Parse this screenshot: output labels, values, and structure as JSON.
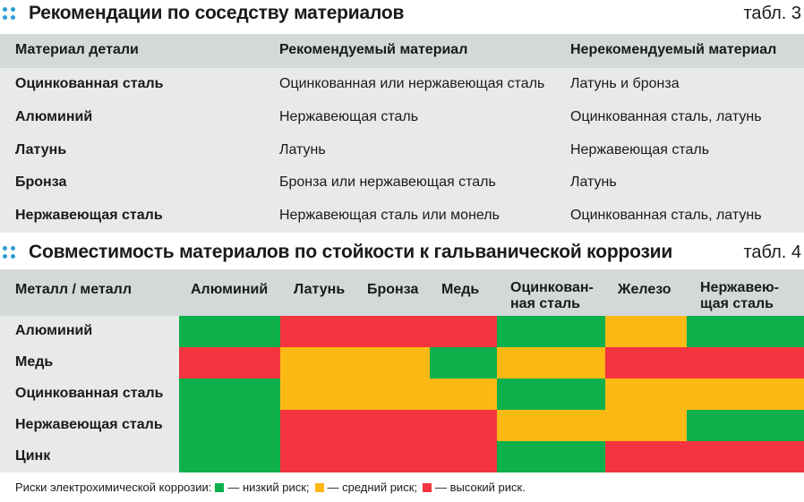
{
  "table3": {
    "title": "Рекомендации по соседству материалов",
    "number": "табл. 3",
    "headers": [
      "Материал детали",
      "Рекомендуемый материал",
      "Нерекомендуемый материал"
    ],
    "rows": [
      [
        "Оцинкованная сталь",
        "Оцинкованная или нержавеющая сталь",
        "Латунь и бронза"
      ],
      [
        "Алюминий",
        "Нержавеющая сталь",
        "Оцинкованная сталь, латунь"
      ],
      [
        "Латунь",
        "Латунь",
        "Нержавеющая сталь"
      ],
      [
        "Бронза",
        "Бронза или нержавеющая сталь",
        "Латунь"
      ],
      [
        "Нержавеющая сталь",
        "Нержавеющая сталь или монель",
        "Оцинкованная сталь, латунь"
      ]
    ]
  },
  "table4": {
    "title": "Совместимость материалов по стойкости к гальванической коррозии",
    "number": "табл. 4",
    "corner_header": "Металл / металл",
    "columns": [
      [
        "Алюминий"
      ],
      [
        "Латунь"
      ],
      [
        "Бронза"
      ],
      [
        "Медь"
      ],
      [
        "Оцинкован-",
        "ная сталь"
      ],
      [
        "Железо"
      ],
      [
        "Нержавею-",
        "щая сталь"
      ]
    ],
    "rows": [
      {
        "label": "Алюминий",
        "risk": [
          "low",
          "high",
          "high",
          "high",
          "low",
          "medium",
          "low"
        ]
      },
      {
        "label": "Медь",
        "risk": [
          "high",
          "medium",
          "medium",
          "low",
          "medium",
          "high",
          "high"
        ]
      },
      {
        "label": "Оцинкованная сталь",
        "risk": [
          "low",
          "medium",
          "medium",
          "medium",
          "low",
          "medium",
          "medium"
        ]
      },
      {
        "label": "Нержавеющая сталь",
        "risk": [
          "low",
          "high",
          "high",
          "high",
          "medium",
          "medium",
          "low"
        ]
      },
      {
        "label": "Цинк",
        "risk": [
          "low",
          "high",
          "high",
          "high",
          "low",
          "high",
          "high"
        ]
      }
    ]
  },
  "legend": {
    "prefix": "Риски электрохимической коррозии:",
    "items": [
      {
        "key": "low",
        "label": "— низкий риск;"
      },
      {
        "key": "medium",
        "label": "— средний риск;"
      },
      {
        "key": "high",
        "label": "— высокий риск."
      }
    ]
  },
  "colors": {
    "low": "#0db04b",
    "medium": "#fdb913",
    "high": "#f4343f",
    "header_bg": "#d3d8d9",
    "body_bg": "#e8eaea",
    "accent_dots": "#2d9ad2"
  }
}
